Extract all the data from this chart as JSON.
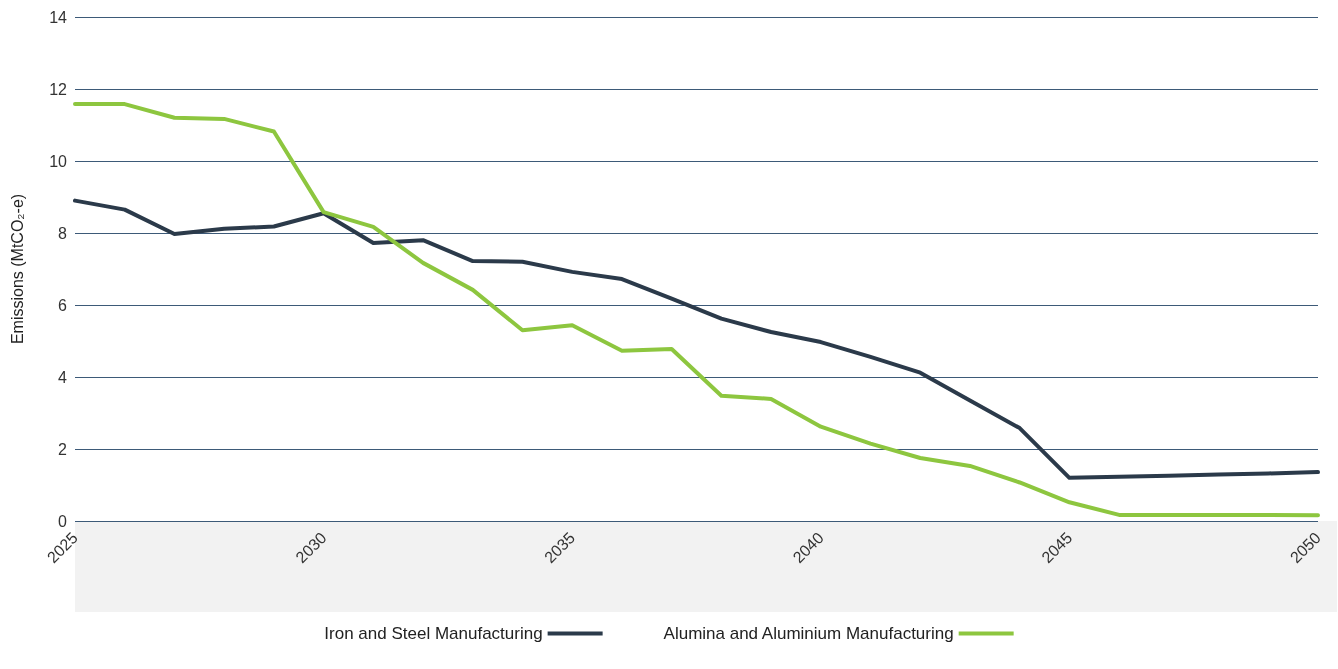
{
  "chart_data": {
    "type": "line",
    "ylabel": "Emissions (MtCO₂-e)",
    "categories": [
      "2025",
      null,
      null,
      null,
      null,
      "2030",
      null,
      null,
      null,
      null,
      "2035",
      null,
      null,
      null,
      null,
      "2040",
      null,
      null,
      null,
      null,
      "2045",
      null,
      null,
      null,
      null,
      "2050"
    ],
    "series": [
      {
        "name": "Iron and Steel Manufacturing",
        "color": "#2b3a4a",
        "values": [
          8.9,
          8.65,
          7.97,
          8.12,
          8.18,
          8.55,
          7.72,
          7.8,
          7.22,
          7.2,
          6.92,
          6.72,
          6.18,
          5.62,
          5.25,
          4.97,
          4.56,
          4.12,
          3.35,
          2.58,
          1.2,
          1.23,
          1.26,
          1.29,
          1.32,
          1.36
        ]
      },
      {
        "name": "Alumina and Aluminium Manufacturing",
        "color": "#8dc63f",
        "values": [
          11.58,
          11.58,
          11.2,
          11.17,
          10.82,
          8.58,
          8.17,
          7.17,
          6.42,
          5.3,
          5.44,
          4.73,
          4.78,
          3.48,
          3.39,
          2.62,
          2.15,
          1.75,
          1.53,
          1.07,
          0.52,
          0.17,
          0.17,
          0.17,
          0.17,
          0.16
        ]
      }
    ],
    "ylim": [
      0,
      14
    ],
    "yticks": [
      0,
      2,
      4,
      6,
      8,
      10,
      12,
      14
    ],
    "grid": "y",
    "legend": "bottom",
    "marker": "none",
    "line_style": "solid"
  }
}
